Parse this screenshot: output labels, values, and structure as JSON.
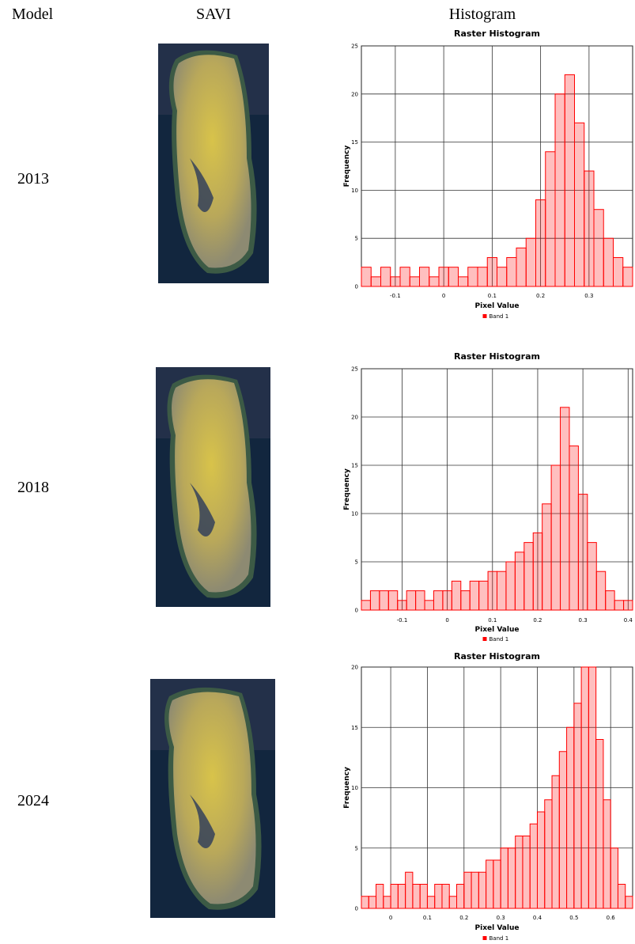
{
  "header": [
    "Model",
    "SAVI",
    "Histogram"
  ],
  "rows": [
    "2013",
    "2018",
    "2024"
  ],
  "chart_data": [
    {
      "type": "histogram",
      "title": "Raster Histogram",
      "x_label": "Pixel Value",
      "y_label": "Frequency",
      "grid": true,
      "bins": [
        -0.17,
        -0.15,
        -0.13,
        -0.11,
        -0.09,
        -0.07,
        -0.05,
        -0.03,
        -0.01,
        0.01,
        0.03,
        0.05,
        0.07,
        0.09,
        0.11,
        0.13,
        0.15,
        0.17,
        0.19,
        0.21,
        0.23,
        0.25,
        0.27,
        0.29,
        0.31,
        0.33,
        0.35,
        0.37,
        0.39
      ],
      "series": [
        {
          "name": "Band 1",
          "color": "#ff0000",
          "values": [
            2,
            1,
            2,
            1,
            2,
            1,
            2,
            1,
            2,
            2,
            1,
            2,
            2,
            3,
            2,
            3,
            4,
            5,
            9,
            14,
            20,
            22,
            17,
            12,
            8,
            5,
            3,
            2
          ]
        }
      ],
      "xlim": [
        -0.17,
        0.39
      ],
      "xticks": [
        -0.1,
        0,
        0.1,
        0.2,
        0.3
      ],
      "ylim": [
        0,
        25
      ],
      "yticks": [
        0,
        5,
        10,
        15,
        20,
        25
      ]
    },
    {
      "type": "histogram",
      "title": "Raster Histogram",
      "x_label": "Pixel Value",
      "y_label": "Frequency",
      "grid": true,
      "bins": [
        -0.19,
        -0.17,
        -0.15,
        -0.13,
        -0.11,
        -0.09,
        -0.07,
        -0.05,
        -0.03,
        -0.01,
        0.01,
        0.03,
        0.05,
        0.07,
        0.09,
        0.11,
        0.13,
        0.15,
        0.17,
        0.19,
        0.21,
        0.23,
        0.25,
        0.27,
        0.29,
        0.31,
        0.33,
        0.35,
        0.37,
        0.39,
        0.41
      ],
      "series": [
        {
          "name": "Band 1",
          "color": "#ff0000",
          "values": [
            1,
            2,
            2,
            2,
            1,
            2,
            2,
            1,
            2,
            2,
            3,
            2,
            3,
            3,
            4,
            4,
            5,
            6,
            7,
            8,
            11,
            15,
            21,
            17,
            12,
            7,
            4,
            2,
            1,
            1
          ]
        }
      ],
      "xlim": [
        -0.19,
        0.41
      ],
      "xticks": [
        -0.1,
        0,
        0.1,
        0.2,
        0.3,
        0.4
      ],
      "ylim": [
        0,
        25
      ],
      "yticks": [
        0,
        5,
        10,
        15,
        20,
        25
      ]
    },
    {
      "type": "histogram",
      "title": "Raster Histogram",
      "x_label": "Pixel Value",
      "y_label": "Frequency",
      "grid": true,
      "bins": [
        -0.08,
        -0.06,
        -0.04,
        -0.02,
        0,
        0.02,
        0.04,
        0.06,
        0.08,
        0.1,
        0.12,
        0.14,
        0.16,
        0.18,
        0.2,
        0.22,
        0.24,
        0.26,
        0.28,
        0.3,
        0.32,
        0.34,
        0.36,
        0.38,
        0.4,
        0.42,
        0.44,
        0.46,
        0.48,
        0.5,
        0.52,
        0.54,
        0.56,
        0.58,
        0.6,
        0.62,
        0.64,
        0.66
      ],
      "series": [
        {
          "name": "Band 1",
          "color": "#ff0000",
          "values": [
            1,
            1,
            2,
            1,
            2,
            2,
            3,
            2,
            2,
            1,
            2,
            2,
            1,
            2,
            3,
            3,
            3,
            4,
            4,
            5,
            5,
            6,
            6,
            7,
            8,
            9,
            11,
            13,
            15,
            17,
            20,
            20,
            14,
            9,
            5,
            2,
            1
          ]
        }
      ],
      "xlim": [
        -0.08,
        0.66
      ],
      "xticks": [
        0,
        0.1,
        0.2,
        0.3,
        0.4,
        0.5,
        0.6
      ],
      "ylim": [
        0,
        20
      ],
      "yticks": [
        0,
        5,
        10,
        15,
        20
      ]
    }
  ]
}
